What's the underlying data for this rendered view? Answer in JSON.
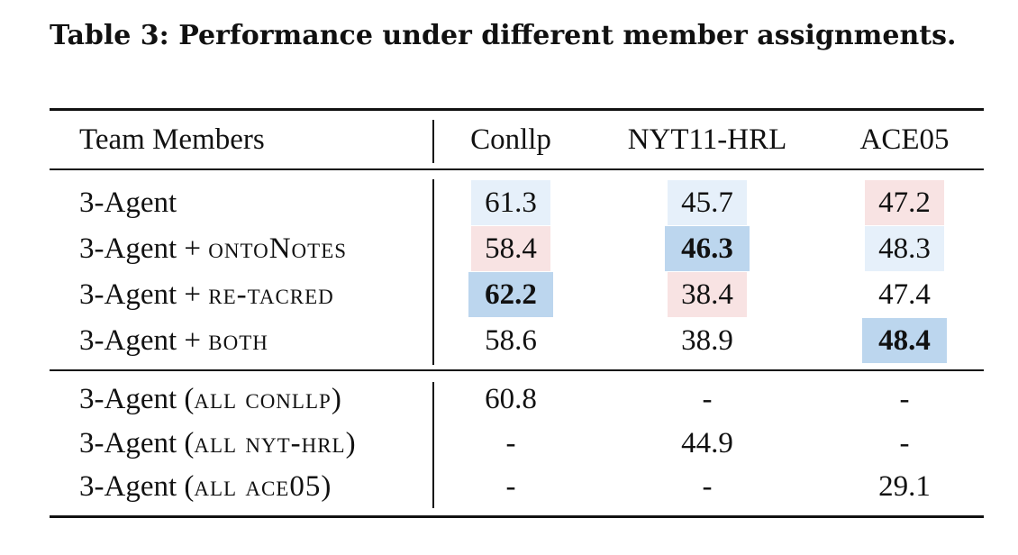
{
  "caption": "Table 3: Performance under different member assignments.",
  "headers": {
    "team_members": "Team Members",
    "conllp": "Conllp",
    "nyt": "NYT11-HRL",
    "ace": "ACE05"
  },
  "rows": [
    {
      "prefix": "3-Agent",
      "suffix": "",
      "conllp": "61.3",
      "nyt": "45.7",
      "ace": "47.2"
    },
    {
      "prefix": "3-Agent + ",
      "suffix": "ontoNotes",
      "conllp": "58.4",
      "nyt": "46.3",
      "ace": "48.3"
    },
    {
      "prefix": "3-Agent + ",
      "suffix": "re-tacred",
      "conllp": "62.2",
      "nyt": "38.4",
      "ace": "47.4"
    },
    {
      "prefix": "3-Agent + ",
      "suffix": "both",
      "conllp": "58.6",
      "nyt": "38.9",
      "ace": "48.4"
    },
    {
      "prefix": "3-Agent (",
      "suffix": "all conllp",
      "close": ")",
      "conllp": "60.8",
      "nyt": "-",
      "ace": "-"
    },
    {
      "prefix": "3-Agent (",
      "suffix": "all nyt-hrl",
      "close": ")",
      "conllp": "-",
      "nyt": "44.9",
      "ace": "-"
    },
    {
      "prefix": "3-Agent (",
      "suffix": "all ace05",
      "close": ")",
      "conllp": "-",
      "nyt": "-",
      "ace": "29.1"
    }
  ],
  "colors": {
    "light_blue": "#e6f0fa",
    "light_red": "#f8e3e3",
    "best_blue": "#bcd6ee"
  }
}
